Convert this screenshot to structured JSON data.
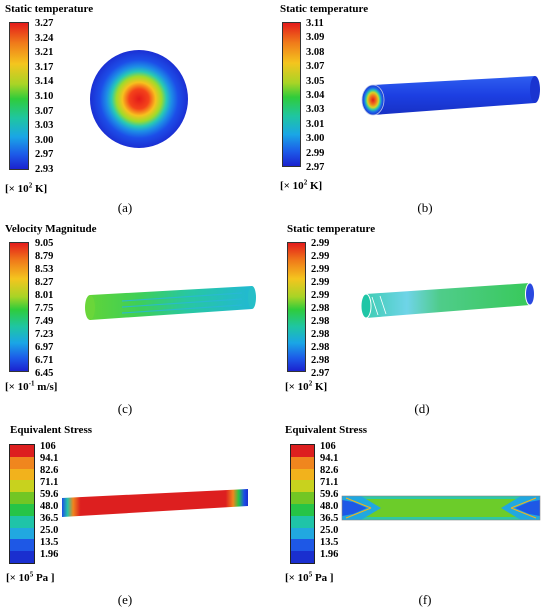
{
  "panels": [
    {
      "id": "a",
      "title": "Static temperature",
      "ticks": [
        "3.27",
        "3.24",
        "3.21",
        "3.17",
        "3.14",
        "3.10",
        "3.07",
        "3.03",
        "3.00",
        "2.97",
        "2.93"
      ],
      "unit_prefix": "[× 10",
      "unit_exp": "2",
      "unit_suffix": " K]",
      "caption": "(a)",
      "scale": "smooth"
    },
    {
      "id": "b",
      "title": "Static temperature",
      "ticks": [
        "3.11",
        "3.09",
        "3.08",
        "3.07",
        "3.05",
        "3.04",
        "3.03",
        "3.01",
        "3.00",
        "2.99",
        "2.97"
      ],
      "unit_prefix": "[× 10",
      "unit_exp": "2",
      "unit_suffix": " K]",
      "caption": "(b)",
      "scale": "smooth"
    },
    {
      "id": "c",
      "title": "Velocity Magnitude",
      "ticks": [
        "9.05",
        "8.79",
        "8.53",
        "8.27",
        "8.01",
        "7.75",
        "7.49",
        "7.23",
        "6.97",
        "6.71",
        "6.45"
      ],
      "unit_prefix": "[× 10",
      "unit_exp": "-1",
      "unit_suffix": " m/s]",
      "caption": "(c)",
      "scale": "smooth"
    },
    {
      "id": "d",
      "title": "Static temperature",
      "ticks": [
        "2.99",
        "2.99",
        "2.99",
        "2.99",
        "2.99",
        "2.98",
        "2.98",
        "2.98",
        "2.98",
        "2.98",
        "2.97"
      ],
      "unit_prefix": "[× 10",
      "unit_exp": "2",
      "unit_suffix": " K]",
      "caption": "(d)",
      "scale": "smooth"
    },
    {
      "id": "e",
      "title": "Equivalent Stress",
      "ticks": [
        "106",
        "94.1",
        "82.6",
        "71.1",
        "59.6",
        "48.0",
        "36.5",
        "25.0",
        "13.5",
        "1.96"
      ],
      "unit_prefix": "[× 10",
      "unit_exp": "5",
      "unit_suffix": " Pa ]",
      "caption": "(e)",
      "scale": "banded"
    },
    {
      "id": "f",
      "title": "Equivalent Stress",
      "ticks": [
        "106",
        "94.1",
        "82.6",
        "71.1",
        "59.6",
        "48.0",
        "36.5",
        "25.0",
        "13.5",
        "1.96"
      ],
      "unit_prefix": "[× 10",
      "unit_exp": "5",
      "unit_suffix": " Pa ]",
      "caption": "(f)",
      "scale": "banded"
    }
  ],
  "colors": {
    "band_colors": [
      "#dd1f1f",
      "#f0861e",
      "#f2b21c",
      "#c8d21e",
      "#72c624",
      "#26c447",
      "#1fc4a8",
      "#21a8e0",
      "#1e58e6",
      "#1a2fcf"
    ]
  }
}
